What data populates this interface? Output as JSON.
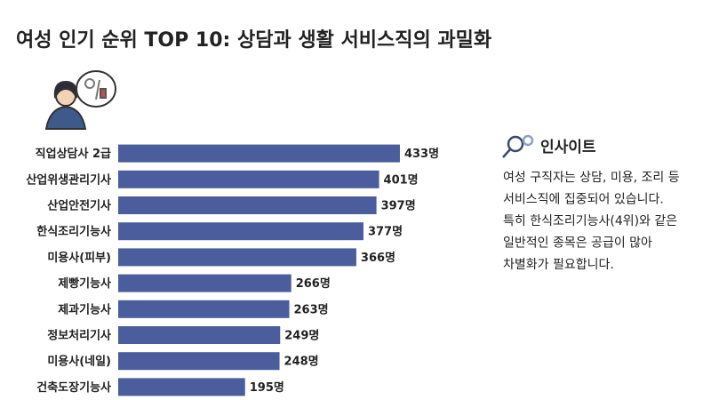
{
  "chart_data": {
    "type": "bar",
    "orientation": "horizontal",
    "title": "여성 인기 순위 TOP 10: 상담과 생활 서비스직의 과밀화",
    "categories": [
      "직업상담사 2급",
      "산업위생관리기사",
      "산업안전기사",
      "한식조리기능사",
      "미용사(피부)",
      "제빵기능사",
      "제과기능사",
      "정보처리기사",
      "미용사(네일)",
      "건축도장기능사"
    ],
    "values": [
      433,
      401,
      397,
      377,
      366,
      266,
      263,
      249,
      248,
      195
    ],
    "value_labels": [
      "433명",
      "401명",
      "397명",
      "377명",
      "366명",
      "266명",
      "263명",
      "249명",
      "248명",
      "195명"
    ],
    "color": "#4b5d9c",
    "xlim": [
      0,
      500
    ]
  },
  "insight": {
    "title": "인사이트",
    "lines": [
      "여성 구직자는 상담, 미용, 조리 등",
      "서비스직에 집중되어 있습니다.",
      "특히 한식조리기능사(4위)와 같은",
      "일반적인 종목은 공급이 많아",
      "차별화가 필요합니다."
    ]
  }
}
